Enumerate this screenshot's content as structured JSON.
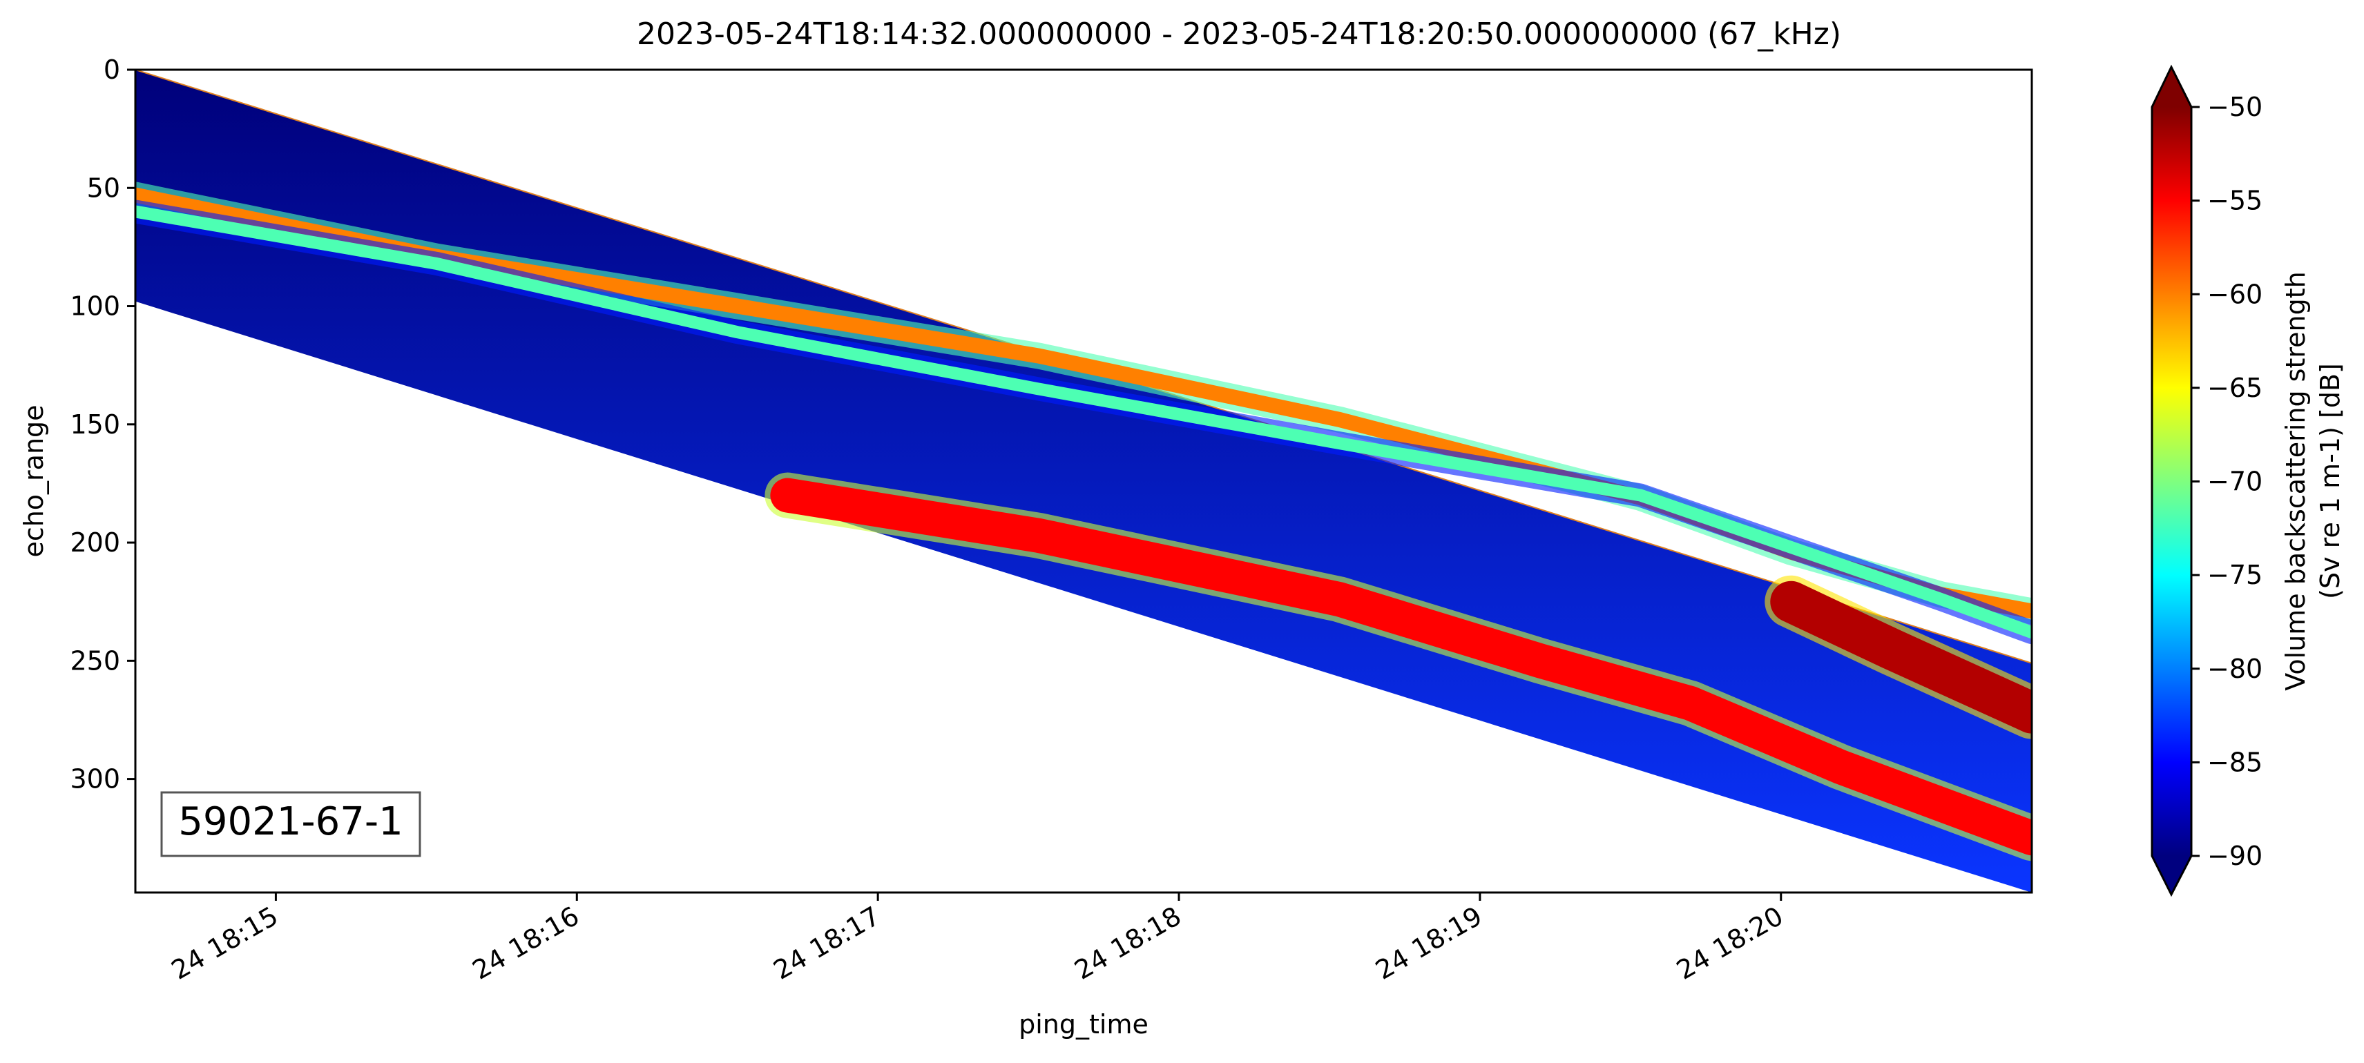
{
  "chart_data": {
    "type": "heatmap",
    "title": "2023-05-24T18:14:32.000000000 - 2023-05-24T18:20:50.000000000 (67_kHz)",
    "xlabel": "ping_time",
    "ylabel": "echo_range",
    "xlim": [
      "2023-05-24T18:14:32",
      "2023-05-24T18:20:50"
    ],
    "ylim": [
      0,
      348
    ],
    "y_inverted": true,
    "x_ticks": [
      "24 18:15",
      "24 18:16",
      "24 18:17",
      "24 18:18",
      "24 18:19",
      "24 18:20"
    ],
    "x_tick_seconds": [
      28,
      88,
      148,
      208,
      268,
      328
    ],
    "y_ticks": [
      0,
      50,
      100,
      150,
      200,
      250,
      300
    ],
    "colorbar": {
      "label_line1": "Volume backscattering strength",
      "label_line2": "(Sv re 1 m-1) [dB]",
      "vmin": -90,
      "vmax": -50,
      "ticks": [
        -50,
        -55,
        -60,
        -65,
        -70,
        -75,
        -80,
        -85,
        -90
      ],
      "colormap": "jet",
      "extend": "both"
    },
    "annotation": "59021-67-1",
    "data_extent": {
      "top_echo_range_start": 0,
      "top_echo_range_end": 251,
      "bottom_echo_range_start": 98,
      "bottom_echo_range_end": 348
    },
    "layers": [
      {
        "name": "upper scattering layer",
        "time_seconds": [
          0,
          30,
          60,
          120,
          180,
          240,
          300,
          330,
          360,
          378
        ],
        "echo_range": [
          53,
          66,
          79,
          100,
          121,
          148,
          181,
          204,
          222,
          229
        ],
        "sv_db": -60
      },
      {
        "name": "lower scattering layer",
        "time_seconds": [
          0,
          60,
          120,
          180,
          240,
          300,
          330,
          360,
          378
        ],
        "echo_range": [
          60,
          82,
          111,
          135,
          158,
          180,
          202,
          224,
          238
        ],
        "sv_db": -72
      },
      {
        "name": "deep strong layer",
        "time_seconds": [
          130,
          180,
          240,
          280,
          310,
          340,
          378
        ],
        "echo_range": [
          180,
          197,
          224,
          250,
          268,
          295,
          325
        ],
        "sv_db": -55
      },
      {
        "name": "surface-following strong band",
        "time_seconds": [
          330,
          350,
          378
        ],
        "echo_range": [
          225,
          245,
          272
        ],
        "sv_db": -52
      }
    ]
  }
}
